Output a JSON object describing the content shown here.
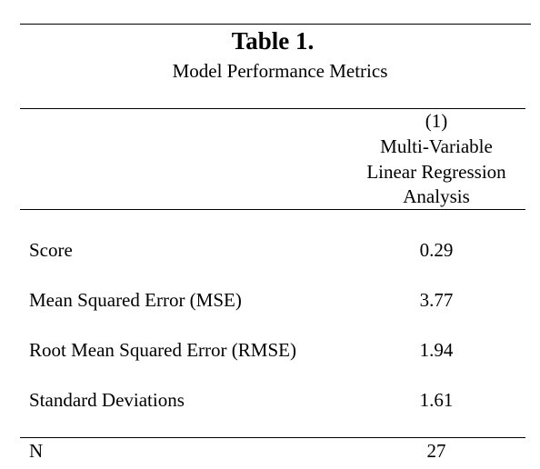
{
  "table": {
    "title": "Table 1.",
    "subtitle": "Model Performance Metrics",
    "column_header": {
      "number": "(1)",
      "lines": [
        "Multi-Variable",
        "Linear Regression",
        "Analysis"
      ]
    },
    "rows": [
      {
        "label": "Score",
        "value": "0.29"
      },
      {
        "label": "Mean Squared Error (MSE)",
        "value": "3.77"
      },
      {
        "label": "Root Mean Squared Error (RMSE)",
        "value": "1.94"
      },
      {
        "label": "Standard Deviations",
        "value": "1.61"
      }
    ],
    "footer_row": {
      "label": "N",
      "value": "27"
    }
  }
}
